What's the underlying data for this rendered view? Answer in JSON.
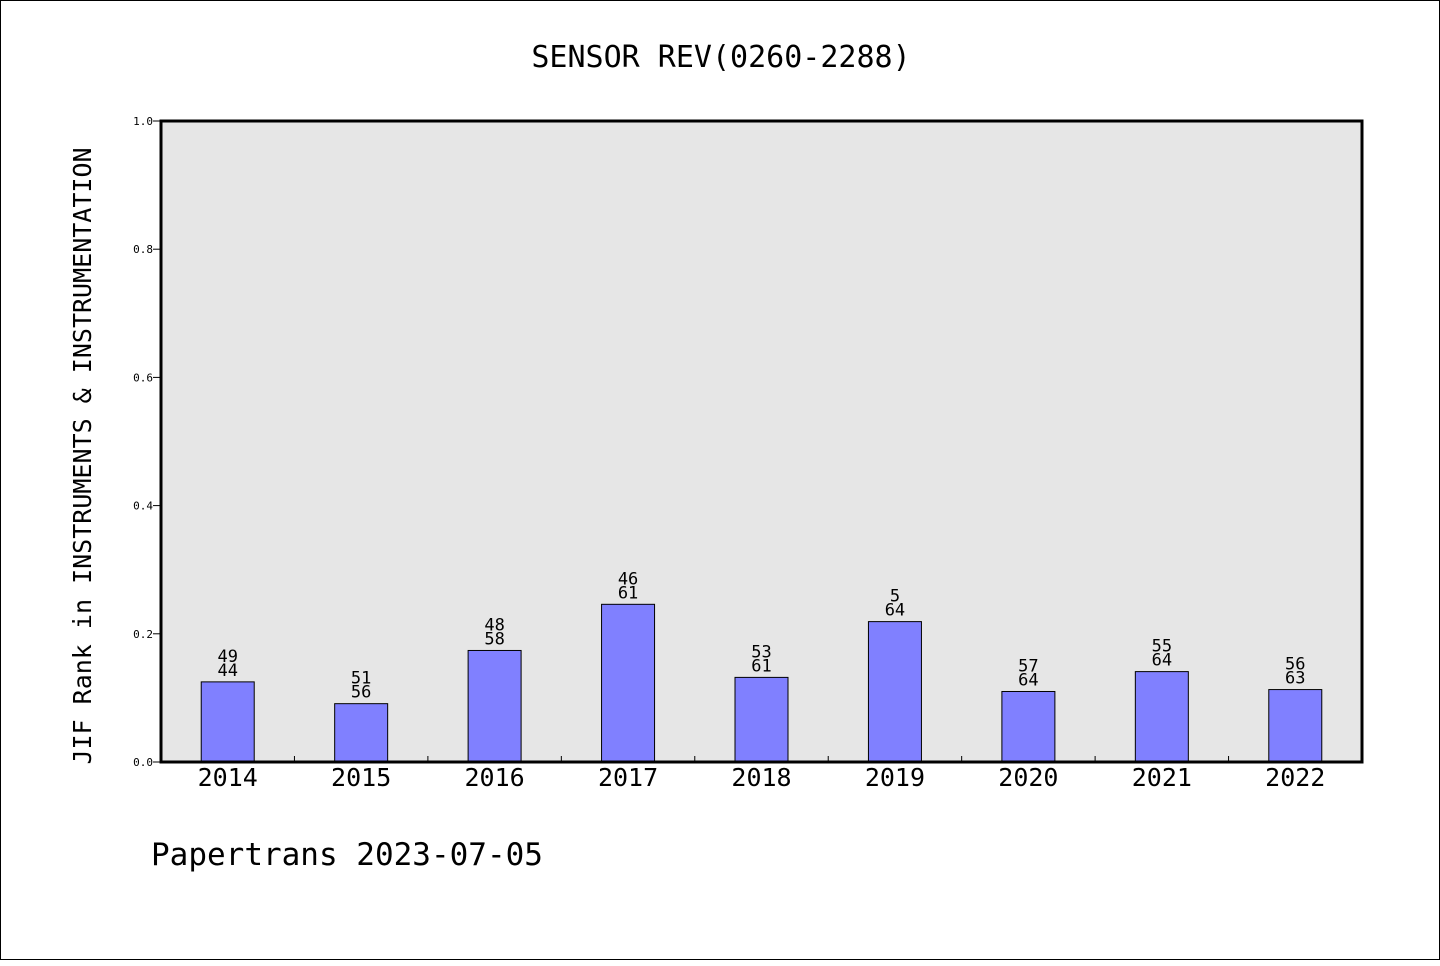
{
  "chart_data": {
    "type": "bar",
    "title": "SENSOR REV(0260-2288)",
    "xlabel": "",
    "ylabel": "JIF Rank in INSTRUMENTS & INSTRUMENTATION",
    "ylim": [
      0.0,
      1.0
    ],
    "yticks": [
      "0.0",
      "0.2",
      "0.4",
      "0.6",
      "0.8",
      "1.0"
    ],
    "grid": false,
    "categories": [
      "2014",
      "2015",
      "2016",
      "2017",
      "2018",
      "2019",
      "2020",
      "2021",
      "2022"
    ],
    "values": [
      0.125,
      0.091,
      0.174,
      0.246,
      0.132,
      0.219,
      0.11,
      0.141,
      0.113
    ],
    "labels_top": [
      "49",
      "51",
      "48",
      "46",
      "53",
      "5",
      "57",
      "55",
      "56"
    ],
    "labels_bottom": [
      "44",
      "56",
      "58",
      "61",
      "61",
      "64",
      "64",
      "64",
      "63"
    ],
    "colors": {
      "bar": "#8080ff",
      "plot_bg": "#e6e6e6"
    }
  },
  "footer": "Papertrans 2023-07-05"
}
